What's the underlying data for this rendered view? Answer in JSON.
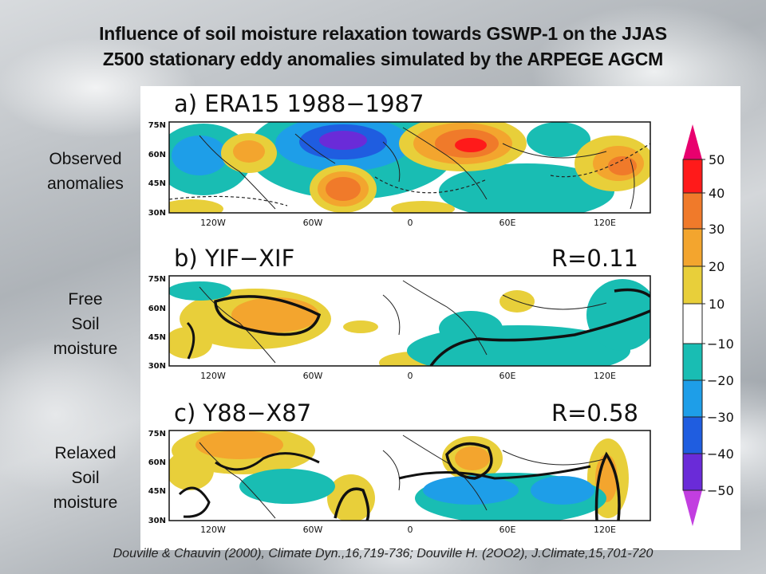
{
  "title_line1": "Influence of soil moisture relaxation towards GSWP-1 on the JJAS",
  "title_line2": "Z500 stationary eddy anomalies simulated by the ARPEGE AGCM",
  "panels": [
    {
      "title": "a) ERA15 1988−1987",
      "r": ""
    },
    {
      "title": "b) YIF−XIF",
      "r": "R=0.11"
    },
    {
      "title": "c) Y88−X87",
      "r": "R=0.58"
    }
  ],
  "lat_ticks": [
    "75N",
    "60N",
    "45N",
    "30N"
  ],
  "lon_ticks": [
    "120W",
    "60W",
    "0",
    "60E",
    "120E"
  ],
  "side_labels": [
    [
      "Observed",
      "anomalies"
    ],
    [
      "Free",
      "Soil",
      "moisture"
    ],
    [
      "Relaxed",
      "Soil",
      "moisture"
    ]
  ],
  "colorbar_labels": [
    "50",
    "40",
    "30",
    "20",
    "10",
    "−10",
    "−20",
    "−30",
    "−40",
    "−50"
  ],
  "colors": {
    "c50": "#e8006e",
    "c40": "#ff1a1a",
    "c30": "#f07a2a",
    "c20": "#f3a52e",
    "c10": "#e8cf3a",
    "c0": "#ffffff",
    "m10": "#19bdb3",
    "m20": "#1e9ee8",
    "m30": "#1f5de0",
    "m40": "#6a2bd8",
    "m50": "#c23ee0"
  },
  "footer": "Douville & Chauvin (2000), Climate Dyn.,16,719-736;  Douville H. (2OO2), J.Climate,15,701-720"
}
